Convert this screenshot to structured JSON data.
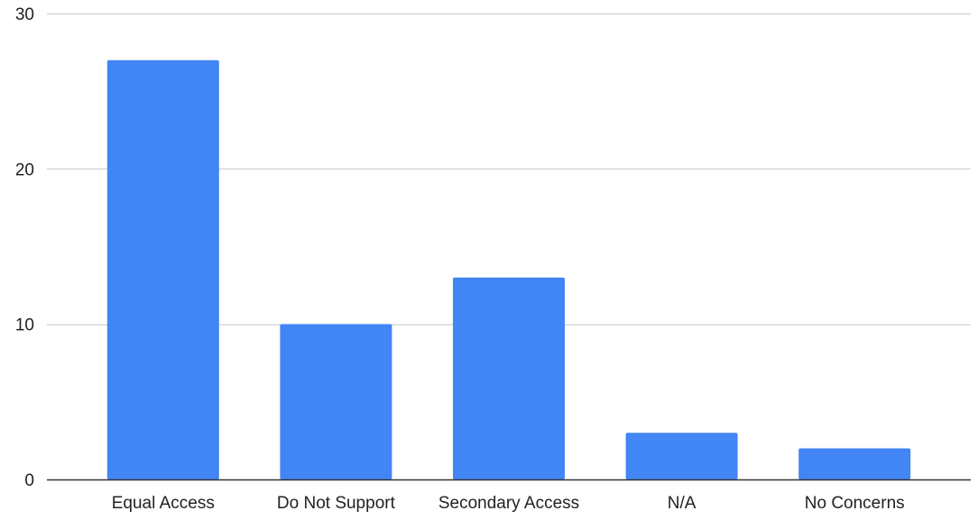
{
  "chart_data": {
    "type": "bar",
    "categories": [
      "Equal Access",
      "Do Not Support",
      "Secondary Access",
      "N/A",
      "No Concerns"
    ],
    "values": [
      27,
      10,
      13,
      3,
      2
    ],
    "ylim": [
      0,
      30
    ],
    "yticks": [
      0,
      10,
      20,
      30
    ],
    "grid": true,
    "bar_color": "#4285f4",
    "gridline_color": "#cccccc",
    "axis_color": "#333333",
    "text_color": "#222222"
  }
}
